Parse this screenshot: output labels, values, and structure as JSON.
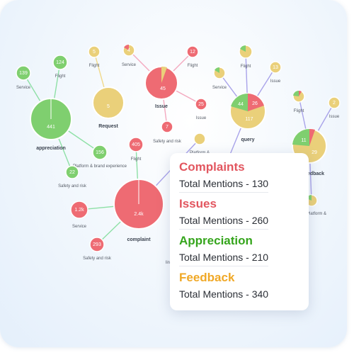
{
  "colors": {
    "complaint": "#ee6b73",
    "appreciation": "#7fcf6f",
    "feedback": "#ead07a",
    "edge_green": "#8ee0a6",
    "edge_purple": "#a9a3ea",
    "edge_pink": "#f3a9bf",
    "edge_yellow": "#f1d98a"
  },
  "graph": {
    "hubs": [
      {
        "label": "appreciation"
      },
      {
        "label": "Request"
      },
      {
        "label": "Issue"
      },
      {
        "label": "query"
      },
      {
        "label": "complaint"
      },
      {
        "label": "edback"
      }
    ],
    "values": [
      "441",
      "124",
      "139",
      "5",
      "45",
      "4",
      "12",
      "25",
      "26",
      "117",
      "44",
      "11",
      "29",
      "405",
      "156",
      "22",
      "1.2k",
      "2.4k",
      "293",
      "13",
      "2",
      "7"
    ],
    "labels": [
      "Service",
      "Flight",
      "Flight",
      "Service",
      "Flight",
      "Issue",
      "Issue",
      "Service",
      "Flight",
      "Issue",
      "Flight",
      "Safety and risk",
      "Platform & brand experience",
      "Safety and risk",
      "Service",
      "Safety and risk",
      "Platform &",
      "Platform & brand experience",
      "Flight",
      "lin"
    ]
  },
  "summary": {
    "categories": [
      {
        "title": "Complaints",
        "total": "Total Mentions - 130",
        "color": "#e2565f"
      },
      {
        "title": "Issues",
        "total": "Total Mentions - 260",
        "color": "#e2565f"
      },
      {
        "title": "Appreciation",
        "total": "Total Mentions - 210",
        "color": "#35a51c"
      },
      {
        "title": "Feedback",
        "total": "Total Mentions - 340",
        "color": "#f0a826"
      }
    ]
  }
}
